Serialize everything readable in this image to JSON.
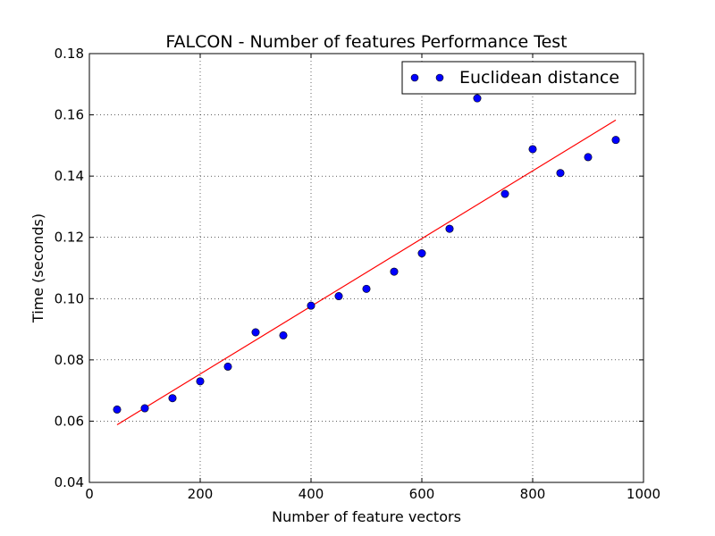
{
  "chart_data": {
    "type": "scatter",
    "title": "FALCON - Number of features Performance Test",
    "xlabel": "Number of feature vectors",
    "ylabel": "Time (seconds)",
    "xlim": [
      0,
      1000
    ],
    "ylim": [
      0.04,
      0.18
    ],
    "grid": true,
    "legend_position": "top-right",
    "x_ticks": [
      "0",
      "200",
      "400",
      "600",
      "800",
      "1000"
    ],
    "y_ticks": [
      "0.04",
      "0.06",
      "0.08",
      "0.10",
      "0.12",
      "0.14",
      "0.16",
      "0.18"
    ],
    "series": [
      {
        "name": "Euclidean distance",
        "marker_color": "#0000ff",
        "x": [
          50,
          100,
          150,
          200,
          250,
          300,
          350,
          400,
          450,
          500,
          550,
          600,
          650,
          700,
          750,
          800,
          850,
          900,
          950
        ],
        "y": [
          0.0638,
          0.0642,
          0.0675,
          0.073,
          0.0778,
          0.089,
          0.088,
          0.0977,
          0.1008,
          0.1032,
          0.1088,
          0.1148,
          0.1228,
          0.1654,
          0.1342,
          0.1488,
          0.141,
          0.1462,
          0.1518
        ]
      }
    ],
    "fit_line": {
      "color": "#ff0000",
      "x": [
        50,
        950
      ],
      "y": [
        0.0588,
        0.1583
      ]
    }
  }
}
